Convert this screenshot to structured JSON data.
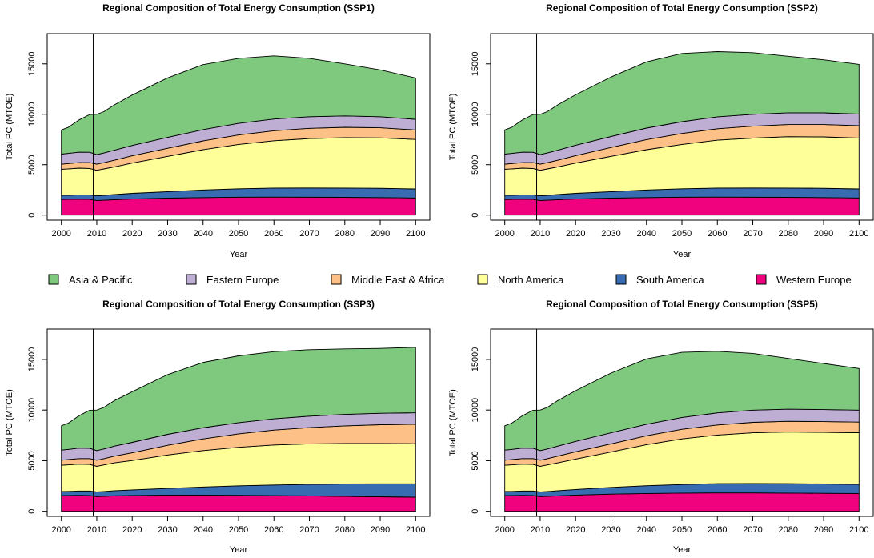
{
  "figure": {
    "legend": {
      "placement": "middle-center",
      "items": [
        {
          "label": "Asia & Pacific",
          "color": "#7FC97F"
        },
        {
          "label": "Eastern Europe",
          "color": "#BEAED4"
        },
        {
          "label": "Middle East & Africa",
          "color": "#FDC086"
        },
        {
          "label": "North America",
          "color": "#FFFF99"
        },
        {
          "label": "South America",
          "color": "#386CB0"
        },
        {
          "label": "Western Europe",
          "color": "#F0027F"
        }
      ]
    }
  },
  "chart_data": [
    {
      "type": "area",
      "stacked": true,
      "title": "Regional Composition of Total Energy Consumption (SSP1)",
      "xlabel": "Year",
      "ylabel": "Total PC (MTOE)",
      "xlim": [
        1996,
        2104
      ],
      "ylim": [
        -500,
        18000
      ],
      "xticks": [
        2000,
        2010,
        2020,
        2030,
        2040,
        2050,
        2060,
        2070,
        2080,
        2090,
        2100
      ],
      "yticks": [
        0,
        5000,
        10000,
        15000
      ],
      "vline_x": 2009,
      "grid": false,
      "x": [
        2000,
        2002,
        2005,
        2008,
        2010,
        2012,
        2015,
        2020,
        2030,
        2040,
        2050,
        2060,
        2070,
        2080,
        2090,
        2100
      ],
      "series": [
        {
          "name": "Western Europe",
          "color": "#F0027F",
          "values": [
            1550,
            1560,
            1580,
            1560,
            1450,
            1480,
            1530,
            1600,
            1680,
            1740,
            1780,
            1790,
            1780,
            1760,
            1740,
            1700
          ]
        },
        {
          "name": "South America",
          "color": "#386CB0",
          "values": [
            400,
            410,
            430,
            450,
            460,
            480,
            510,
            560,
            650,
            750,
            830,
            890,
            910,
            920,
            920,
            900
          ]
        },
        {
          "name": "North America",
          "color": "#FFFF99",
          "values": [
            2600,
            2620,
            2650,
            2620,
            2540,
            2620,
            2750,
            3000,
            3500,
            4000,
            4400,
            4700,
            4900,
            5000,
            5000,
            4900
          ]
        },
        {
          "name": "Middle East & Africa",
          "color": "#FDC086",
          "values": [
            500,
            520,
            550,
            580,
            600,
            620,
            660,
            720,
            800,
            870,
            940,
            990,
            1020,
            1030,
            1000,
            950
          ]
        },
        {
          "name": "Eastern Europe",
          "color": "#BEAED4",
          "values": [
            1000,
            1010,
            1030,
            1020,
            950,
            960,
            990,
            1030,
            1080,
            1120,
            1150,
            1160,
            1150,
            1130,
            1100,
            1050
          ]
        },
        {
          "name": "Asia & Pacific",
          "color": "#7FC97F",
          "values": [
            2400,
            2600,
            3200,
            3750,
            4000,
            4100,
            4500,
            5000,
            5900,
            6450,
            6450,
            6260,
            5790,
            5160,
            4640,
            4100
          ]
        }
      ]
    },
    {
      "type": "area",
      "stacked": true,
      "title": "Regional Composition of Total Energy Consumption (SSP2)",
      "xlabel": "Year",
      "ylabel": "Total PC (MTOE)",
      "xlim": [
        1996,
        2104
      ],
      "ylim": [
        -500,
        18000
      ],
      "xticks": [
        2000,
        2010,
        2020,
        2030,
        2040,
        2050,
        2060,
        2070,
        2080,
        2090,
        2100
      ],
      "yticks": [
        0,
        5000,
        10000,
        15000
      ],
      "vline_x": 2009,
      "grid": false,
      "x": [
        2000,
        2002,
        2005,
        2008,
        2010,
        2012,
        2015,
        2020,
        2030,
        2040,
        2050,
        2060,
        2070,
        2080,
        2090,
        2100
      ],
      "series": [
        {
          "name": "Western Europe",
          "color": "#F0027F",
          "values": [
            1550,
            1560,
            1580,
            1560,
            1450,
            1480,
            1530,
            1600,
            1680,
            1740,
            1780,
            1790,
            1780,
            1760,
            1740,
            1700
          ]
        },
        {
          "name": "South America",
          "color": "#386CB0",
          "values": [
            400,
            410,
            430,
            450,
            460,
            480,
            510,
            560,
            650,
            750,
            830,
            890,
            910,
            920,
            920,
            900
          ]
        },
        {
          "name": "North America",
          "color": "#FFFF99",
          "values": [
            2600,
            2620,
            2650,
            2620,
            2540,
            2620,
            2750,
            3000,
            3500,
            4000,
            4400,
            4750,
            4950,
            5100,
            5100,
            5050
          ]
        },
        {
          "name": "Middle East & Africa",
          "color": "#FDC086",
          "values": [
            500,
            520,
            550,
            580,
            600,
            620,
            660,
            740,
            880,
            1000,
            1090,
            1140,
            1180,
            1200,
            1220,
            1230
          ]
        },
        {
          "name": "Eastern Europe",
          "color": "#BEAED4",
          "values": [
            1000,
            1010,
            1030,
            1020,
            950,
            960,
            990,
            1030,
            1090,
            1140,
            1170,
            1180,
            1180,
            1170,
            1160,
            1150
          ]
        },
        {
          "name": "Asia & Pacific",
          "color": "#7FC97F",
          "values": [
            2400,
            2600,
            3200,
            3750,
            4000,
            4100,
            4500,
            5000,
            5900,
            6570,
            6760,
            6460,
            6110,
            5600,
            5260,
            4920
          ]
        }
      ]
    },
    {
      "type": "area",
      "stacked": true,
      "title": "Regional Composition of Total Energy Consumption (SSP3)",
      "xlabel": "Year",
      "ylabel": "Total PC (MTOE)",
      "xlim": [
        1996,
        2104
      ],
      "ylim": [
        -500,
        18000
      ],
      "xticks": [
        2000,
        2010,
        2020,
        2030,
        2040,
        2050,
        2060,
        2070,
        2080,
        2090,
        2100
      ],
      "yticks": [
        0,
        5000,
        10000,
        15000
      ],
      "vline_x": 2009,
      "grid": false,
      "x": [
        2000,
        2002,
        2005,
        2008,
        2010,
        2012,
        2015,
        2020,
        2030,
        2040,
        2050,
        2060,
        2070,
        2080,
        2090,
        2100
      ],
      "series": [
        {
          "name": "Western Europe",
          "color": "#F0027F",
          "values": [
            1550,
            1560,
            1580,
            1560,
            1450,
            1480,
            1530,
            1560,
            1600,
            1600,
            1580,
            1550,
            1520,
            1480,
            1440,
            1400
          ]
        },
        {
          "name": "South America",
          "color": "#386CB0",
          "values": [
            400,
            410,
            430,
            450,
            460,
            480,
            510,
            560,
            660,
            800,
            940,
            1050,
            1140,
            1220,
            1280,
            1320
          ]
        },
        {
          "name": "North America",
          "color": "#FFFF99",
          "values": [
            2600,
            2620,
            2650,
            2620,
            2540,
            2620,
            2750,
            2900,
            3300,
            3600,
            3800,
            3950,
            4000,
            4000,
            3980,
            3960
          ]
        },
        {
          "name": "Middle East & Africa",
          "color": "#FDC086",
          "values": [
            500,
            520,
            550,
            580,
            600,
            620,
            660,
            760,
            960,
            1150,
            1330,
            1470,
            1610,
            1740,
            1850,
            1920
          ]
        },
        {
          "name": "Eastern Europe",
          "color": "#BEAED4",
          "values": [
            1000,
            1010,
            1030,
            1020,
            950,
            960,
            990,
            1030,
            1080,
            1100,
            1110,
            1120,
            1130,
            1130,
            1130,
            1130
          ]
        },
        {
          "name": "Asia & Pacific",
          "color": "#7FC97F",
          "values": [
            2400,
            2600,
            3200,
            3750,
            4000,
            4100,
            4500,
            5000,
            5900,
            6450,
            6590,
            6630,
            6560,
            6470,
            6410,
            6470
          ]
        }
      ]
    },
    {
      "type": "area",
      "stacked": true,
      "title": "Regional Composition of Total Energy Consumption (SSP5)",
      "xlabel": "Year",
      "ylabel": "Total PC (MTOE)",
      "xlim": [
        1996,
        2104
      ],
      "ylim": [
        -500,
        18000
      ],
      "xticks": [
        2000,
        2010,
        2020,
        2030,
        2040,
        2050,
        2060,
        2070,
        2080,
        2090,
        2100
      ],
      "yticks": [
        0,
        5000,
        10000,
        15000
      ],
      "vline_x": 2009,
      "grid": false,
      "x": [
        2000,
        2002,
        2005,
        2008,
        2010,
        2012,
        2015,
        2020,
        2030,
        2040,
        2050,
        2060,
        2070,
        2080,
        2090,
        2100
      ],
      "series": [
        {
          "name": "Western Europe",
          "color": "#F0027F",
          "values": [
            1550,
            1560,
            1580,
            1560,
            1450,
            1480,
            1530,
            1600,
            1700,
            1760,
            1800,
            1820,
            1820,
            1800,
            1780,
            1760
          ]
        },
        {
          "name": "South America",
          "color": "#386CB0",
          "values": [
            400,
            410,
            430,
            450,
            460,
            480,
            510,
            560,
            660,
            770,
            850,
            910,
            930,
            930,
            920,
            900
          ]
        },
        {
          "name": "North America",
          "color": "#FFFF99",
          "values": [
            2600,
            2620,
            2650,
            2620,
            2540,
            2620,
            2750,
            3000,
            3500,
            4050,
            4500,
            4800,
            5000,
            5100,
            5100,
            5100
          ]
        },
        {
          "name": "Middle East & Africa",
          "color": "#FDC086",
          "values": [
            500,
            520,
            550,
            580,
            600,
            620,
            660,
            720,
            800,
            880,
            950,
            1000,
            1040,
            1060,
            1060,
            1050
          ]
        },
        {
          "name": "Eastern Europe",
          "color": "#BEAED4",
          "values": [
            1000,
            1010,
            1030,
            1020,
            950,
            960,
            990,
            1030,
            1090,
            1140,
            1170,
            1190,
            1200,
            1200,
            1190,
            1180
          ]
        },
        {
          "name": "Asia & Pacific",
          "color": "#7FC97F",
          "values": [
            2400,
            2600,
            3200,
            3750,
            4000,
            4100,
            4500,
            5000,
            5900,
            6450,
            6430,
            6080,
            5610,
            5010,
            4550,
            4110
          ]
        }
      ]
    }
  ]
}
